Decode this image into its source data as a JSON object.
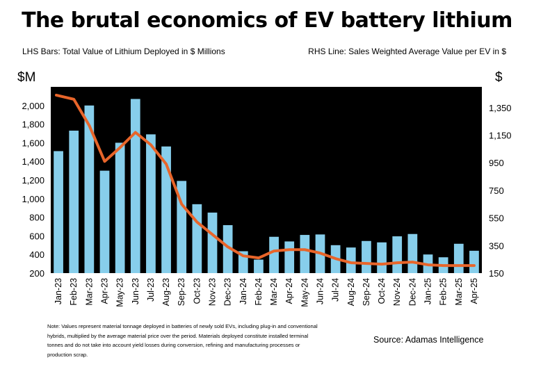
{
  "title": "The brutal economics of EV battery lithium",
  "left_subtitle": "LHS Bars: Total Value of Lithium Deployed in $ Millions",
  "right_subtitle": "RHS Line: Sales Weighted Average Value per EV in $",
  "left_unit": "$M",
  "right_unit": "$",
  "note": "Note: Values represent material tonnage deployed in batteries of newly sold EVs, including plug-in and conventional hybrids, multiplied by the average material price over the period. Materials deployed constitute installed terminal tonnes and do not take into account yield losses during conversion, refining and manufacturing processes or production scrap.",
  "source": "Source: Adamas Intelligence",
  "chart_data": {
    "type": "bar+line",
    "categories": [
      "Jan-23",
      "Feb-23",
      "Mar-23",
      "Apr-23",
      "May-23",
      "Jun-23",
      "Jul-23",
      "Aug-23",
      "Sep-23",
      "Oct-23",
      "Nov-23",
      "Dec-23",
      "Jan-24",
      "Feb-24",
      "Mar-24",
      "Apr-24",
      "May-24",
      "Jun-24",
      "Jul-24",
      "Aug-24",
      "Sep-24",
      "Oct-24",
      "Nov-24",
      "Dec-24",
      "Jan-25",
      "Feb-25",
      "Mar-25",
      "Apr-25"
    ],
    "series": [
      {
        "axis": "left",
        "type": "bar",
        "color": "#87CEEB",
        "values": [
          1510,
          1730,
          2000,
          1300,
          1600,
          2070,
          1690,
          1560,
          1190,
          940,
          850,
          715,
          435,
          345,
          590,
          540,
          610,
          615,
          500,
          475,
          545,
          530,
          595,
          620,
          400,
          370,
          515,
          440
        ]
      },
      {
        "axis": "right",
        "type": "line",
        "color": "#E8652A",
        "values": [
          1440,
          1410,
          1220,
          960,
          1060,
          1170,
          1080,
          940,
          650,
          520,
          430,
          340,
          275,
          260,
          310,
          320,
          320,
          295,
          255,
          225,
          220,
          215,
          225,
          230,
          210,
          205,
          205,
          205
        ]
      }
    ],
    "y_left": {
      "ylim": [
        200,
        2200
      ],
      "ticks": [
        200,
        400,
        600,
        800,
        1000,
        1200,
        1400,
        1600,
        1800,
        2000
      ],
      "tick_labels": [
        "200",
        "400",
        "600",
        "800",
        "1,000",
        "1,200",
        "1,400",
        "1,600",
        "1,800",
        "2,000"
      ]
    },
    "y_right": {
      "ylim": [
        150,
        1500
      ],
      "ticks": [
        150,
        350,
        550,
        750,
        950,
        1150,
        1350
      ],
      "tick_labels": [
        "150",
        "350",
        "550",
        "750",
        "950",
        "1,150",
        "1,350"
      ]
    },
    "plot_background": "#000000",
    "grid": false,
    "legend": "none"
  }
}
